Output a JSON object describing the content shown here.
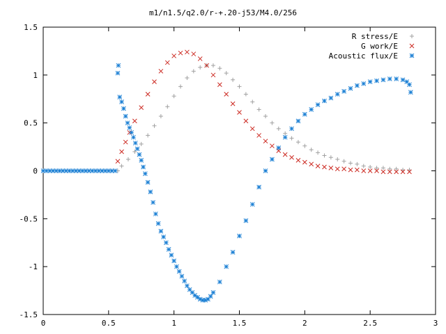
{
  "chart_data": {
    "type": "scatter",
    "title": "m1/n1.5/q2.0/r-+.20-j53/M4.0/256",
    "xlabel": "",
    "ylabel": "",
    "xlim": [
      0,
      3
    ],
    "ylim": [
      -1.5,
      1.5
    ],
    "grid": false,
    "legend_position": "top-right",
    "x_ticks": [
      "0",
      "0.5",
      "1",
      "1.5",
      "2",
      "2.5",
      "3"
    ],
    "y_ticks": [
      "1.5",
      "1",
      "0.5",
      "0",
      "-0.5",
      "-1",
      "-1.5"
    ],
    "series": [
      {
        "name": "R stress/E",
        "marker": "plus",
        "color": "#a0a0a0",
        "x": [
          0.57,
          0.6,
          0.65,
          0.7,
          0.75,
          0.8,
          0.85,
          0.9,
          0.95,
          1.0,
          1.05,
          1.1,
          1.15,
          1.2,
          1.25,
          1.3,
          1.35,
          1.4,
          1.45,
          1.5,
          1.55,
          1.6,
          1.65,
          1.7,
          1.75,
          1.8,
          1.85,
          1.9,
          1.95,
          2.0,
          2.05,
          2.1,
          2.15,
          2.2,
          2.25,
          2.3,
          2.35,
          2.4,
          2.45,
          2.5,
          2.55,
          2.6,
          2.65,
          2.7,
          2.75,
          2.8
        ],
        "y": [
          0.0,
          0.05,
          0.12,
          0.2,
          0.28,
          0.37,
          0.47,
          0.57,
          0.67,
          0.78,
          0.88,
          0.97,
          1.04,
          1.08,
          1.1,
          1.1,
          1.07,
          1.02,
          0.95,
          0.88,
          0.8,
          0.72,
          0.64,
          0.57,
          0.5,
          0.44,
          0.39,
          0.34,
          0.3,
          0.26,
          0.22,
          0.19,
          0.16,
          0.14,
          0.12,
          0.1,
          0.08,
          0.07,
          0.05,
          0.04,
          0.03,
          0.03,
          0.02,
          0.02,
          0.01,
          0.01
        ]
      },
      {
        "name": "G work/E",
        "marker": "cross",
        "color": "#cc2a22",
        "x": [
          0.57,
          0.6,
          0.63,
          0.66,
          0.7,
          0.75,
          0.8,
          0.85,
          0.9,
          0.95,
          1.0,
          1.05,
          1.1,
          1.15,
          1.2,
          1.25,
          1.3,
          1.35,
          1.4,
          1.45,
          1.5,
          1.55,
          1.6,
          1.65,
          1.7,
          1.75,
          1.8,
          1.85,
          1.9,
          1.95,
          2.0,
          2.05,
          2.1,
          2.15,
          2.2,
          2.25,
          2.3,
          2.35,
          2.4,
          2.45,
          2.5,
          2.55,
          2.6,
          2.65,
          2.7,
          2.75,
          2.8
        ],
        "y": [
          0.1,
          0.2,
          0.3,
          0.4,
          0.52,
          0.66,
          0.8,
          0.93,
          1.04,
          1.13,
          1.2,
          1.23,
          1.24,
          1.22,
          1.17,
          1.1,
          1.0,
          0.9,
          0.8,
          0.7,
          0.61,
          0.52,
          0.44,
          0.37,
          0.31,
          0.26,
          0.21,
          0.17,
          0.14,
          0.11,
          0.09,
          0.07,
          0.05,
          0.04,
          0.03,
          0.02,
          0.02,
          0.01,
          0.01,
          0.0,
          0.0,
          0.0,
          -0.01,
          -0.01,
          -0.01,
          -0.01,
          -0.01
        ]
      },
      {
        "name": "Acoustic flux/E",
        "marker": "star",
        "color": "#1a7fd4",
        "x": [
          0.0,
          0.025,
          0.05,
          0.075,
          0.1,
          0.125,
          0.15,
          0.175,
          0.2,
          0.225,
          0.25,
          0.275,
          0.3,
          0.325,
          0.35,
          0.375,
          0.4,
          0.425,
          0.45,
          0.475,
          0.5,
          0.525,
          0.55,
          0.57,
          0.575,
          0.585,
          0.6,
          0.615,
          0.63,
          0.645,
          0.66,
          0.675,
          0.69,
          0.705,
          0.72,
          0.735,
          0.75,
          0.765,
          0.78,
          0.8,
          0.82,
          0.84,
          0.86,
          0.88,
          0.9,
          0.92,
          0.94,
          0.96,
          0.98,
          1.0,
          1.02,
          1.04,
          1.06,
          1.08,
          1.1,
          1.12,
          1.14,
          1.16,
          1.18,
          1.2,
          1.22,
          1.24,
          1.26,
          1.28,
          1.3,
          1.35,
          1.4,
          1.45,
          1.5,
          1.55,
          1.6,
          1.65,
          1.7,
          1.75,
          1.8,
          1.85,
          1.9,
          1.95,
          2.0,
          2.05,
          2.1,
          2.15,
          2.2,
          2.25,
          2.3,
          2.35,
          2.4,
          2.45,
          2.5,
          2.55,
          2.6,
          2.65,
          2.7,
          2.75,
          2.78,
          2.8,
          2.81
        ],
        "y": [
          0.0,
          0.0,
          0.0,
          0.0,
          0.0,
          0.0,
          0.0,
          0.0,
          0.0,
          0.0,
          0.0,
          0.0,
          0.0,
          0.0,
          0.0,
          0.0,
          0.0,
          0.0,
          0.0,
          0.0,
          0.0,
          0.0,
          0.0,
          1.02,
          1.1,
          0.77,
          0.72,
          0.65,
          0.57,
          0.5,
          0.45,
          0.4,
          0.35,
          0.29,
          0.23,
          0.17,
          0.11,
          0.04,
          -0.03,
          -0.12,
          -0.22,
          -0.33,
          -0.45,
          -0.55,
          -0.63,
          -0.69,
          -0.75,
          -0.82,
          -0.88,
          -0.94,
          -1.0,
          -1.05,
          -1.1,
          -1.15,
          -1.2,
          -1.24,
          -1.27,
          -1.3,
          -1.32,
          -1.34,
          -1.35,
          -1.35,
          -1.34,
          -1.31,
          -1.27,
          -1.16,
          -1.0,
          -0.85,
          -0.68,
          -0.52,
          -0.35,
          -0.17,
          0.0,
          0.12,
          0.24,
          0.35,
          0.44,
          0.52,
          0.59,
          0.64,
          0.69,
          0.73,
          0.76,
          0.8,
          0.83,
          0.86,
          0.89,
          0.91,
          0.93,
          0.94,
          0.95,
          0.96,
          0.96,
          0.95,
          0.93,
          0.9,
          0.82
        ]
      }
    ],
    "axes_color": "#000000",
    "background_color": "#ffffff"
  }
}
